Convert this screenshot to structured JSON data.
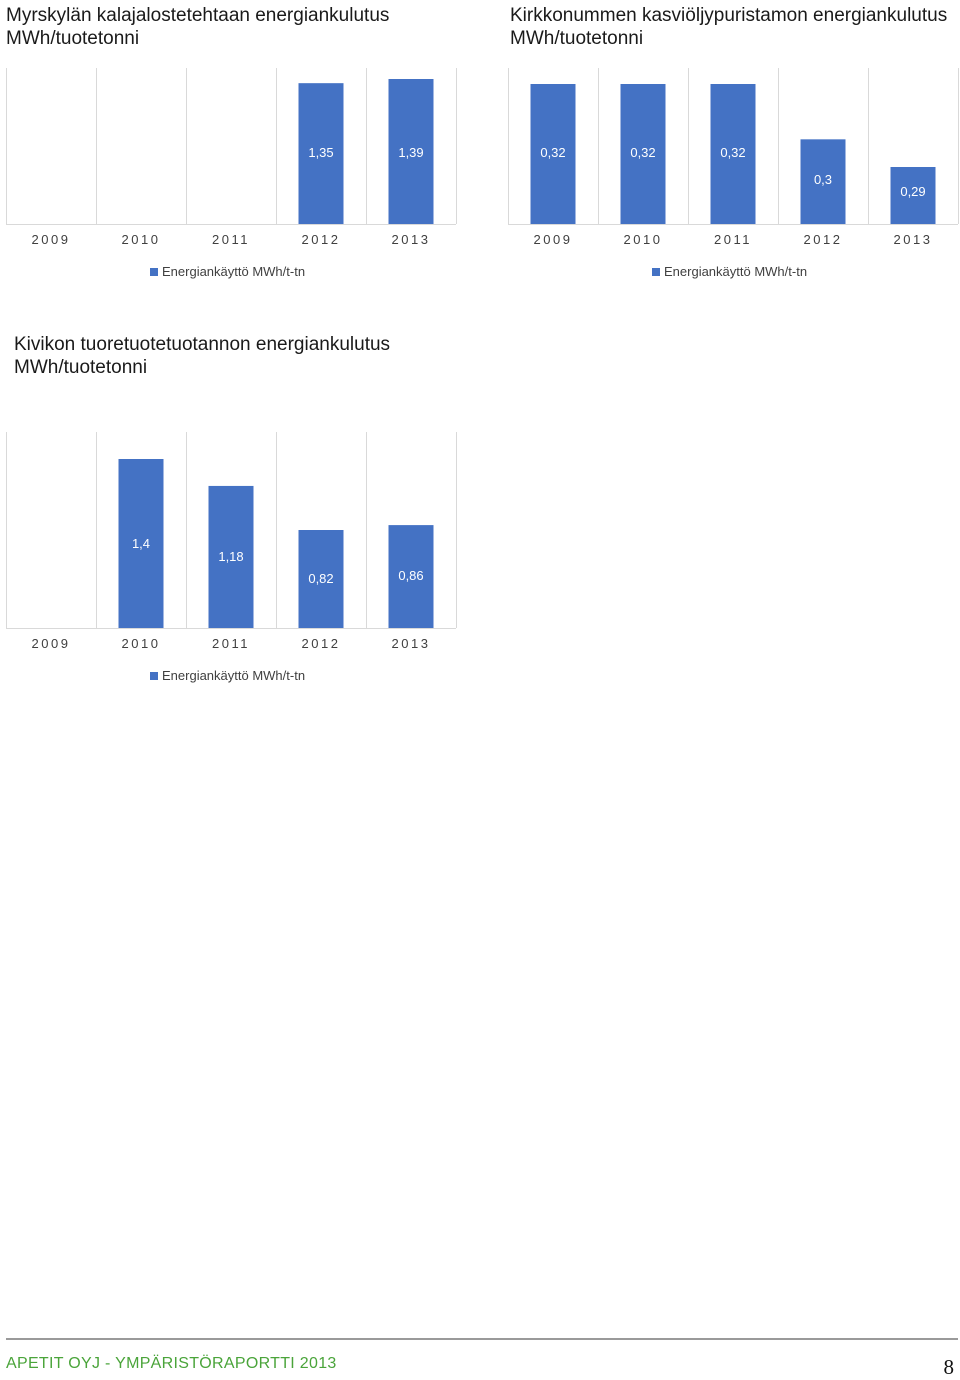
{
  "chart_data": [
    {
      "type": "bar",
      "title": "Myrskylän kalajalostetehtaan  energiankulutus MWh/tuotetonni",
      "categories": [
        "2009",
        "2010",
        "2011",
        "2012",
        "2013"
      ],
      "series": [
        {
          "name": "Energiankäyttö MWh/t-tn",
          "values": [
            null,
            null,
            null,
            1.35,
            1.39
          ]
        }
      ],
      "value_labels": [
        "",
        "",
        "",
        "1,35",
        "1,39"
      ],
      "color": "#4472c4",
      "xlabel": "",
      "ylabel": "",
      "legend": "bottom",
      "grid": "vertical"
    },
    {
      "type": "bar",
      "title": "Kirkkonummen kasviöljypuristamon energiankulutus MWh/tuotetonni",
      "categories": [
        "2009",
        "2010",
        "2011",
        "2012",
        "2013"
      ],
      "series": [
        {
          "name": "Energiankäyttö MWh/t-tn",
          "values": [
            0.32,
            0.32,
            0.32,
            0.3,
            0.29
          ]
        }
      ],
      "value_labels": [
        "0,32",
        "0,32",
        "0,32",
        "0,3",
        "0,29"
      ],
      "color": "#4472c4",
      "xlabel": "",
      "ylabel": "",
      "legend": "bottom",
      "grid": "vertical"
    },
    {
      "type": "bar",
      "title": "Kivikon tuoretuotetuotannon energiankulutus MWh/tuotetonni",
      "categories": [
        "2009",
        "2010",
        "2011",
        "2012",
        "2013"
      ],
      "series": [
        {
          "name": "Energiankäyttö MWh/t-tn",
          "values": [
            null,
            1.4,
            1.18,
            0.82,
            0.86
          ]
        }
      ],
      "value_labels": [
        "",
        "1,4",
        "1,18",
        "0,82",
        "0,86"
      ],
      "color": "#4472c4",
      "xlabel": "",
      "ylabel": "",
      "legend": "bottom",
      "grid": "vertical"
    }
  ],
  "footer": {
    "text": "APETIT OYJ  -  YMPÄRISTÖRAPORTTI 2013",
    "page_number": "8"
  }
}
